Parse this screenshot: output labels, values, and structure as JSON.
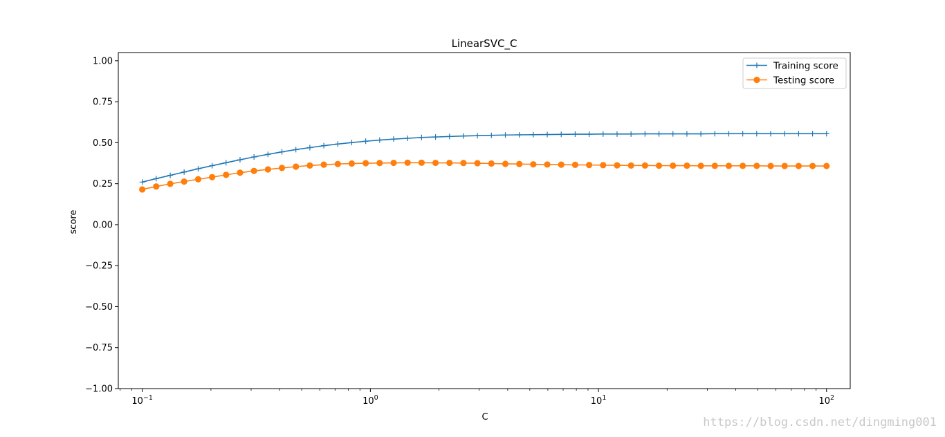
{
  "chart_data": {
    "type": "line",
    "title": "LinearSVC_C",
    "xlabel": "C",
    "ylabel": "score",
    "xscale": "log",
    "xlim": [
      0.0785,
      127
    ],
    "ylim": [
      -1.0,
      1.05
    ],
    "xticks": [
      {
        "value": 0.1,
        "base": "10",
        "exp": "−1"
      },
      {
        "value": 1,
        "base": "10",
        "exp": "0"
      },
      {
        "value": 10,
        "base": "10",
        "exp": "1"
      },
      {
        "value": 100,
        "base": "10",
        "exp": "2"
      }
    ],
    "yticks": [
      1.0,
      0.75,
      0.5,
      0.25,
      0.0,
      -0.25,
      -0.5,
      -0.75,
      -1.0
    ],
    "ytick_labels": [
      "1.00",
      "0.75",
      "0.50",
      "0.25",
      "0.00",
      "−0.25",
      "−0.50",
      "−0.75",
      "−1.00"
    ],
    "grid": false,
    "legend_position": "top-right",
    "x": [
      0.1,
      0.1151,
      0.1326,
      0.1526,
      0.1758,
      0.2024,
      0.233,
      0.2683,
      0.3089,
      0.3556,
      0.4095,
      0.4715,
      0.5429,
      0.6251,
      0.7197,
      0.8286,
      0.9541,
      1.0985,
      1.2649,
      1.4563,
      1.6768,
      1.9307,
      2.223,
      2.5595,
      2.9471,
      3.3932,
      3.9069,
      4.4984,
      5.1795,
      5.9636,
      6.8665,
      7.906,
      9.103,
      10.481,
      12.068,
      13.895,
      15.999,
      18.421,
      21.21,
      24.421,
      28.118,
      32.375,
      37.276,
      42.919,
      49.417,
      56.899,
      65.513,
      75.431,
      86.851,
      100.0
    ],
    "series": [
      {
        "name": "Training score",
        "color": "#1f77b4",
        "marker": "plus",
        "values": [
          0.26,
          0.281,
          0.301,
          0.321,
          0.341,
          0.36,
          0.378,
          0.396,
          0.413,
          0.429,
          0.444,
          0.458,
          0.47,
          0.482,
          0.492,
          0.501,
          0.509,
          0.516,
          0.522,
          0.527,
          0.532,
          0.535,
          0.538,
          0.541,
          0.543,
          0.545,
          0.547,
          0.548,
          0.549,
          0.55,
          0.551,
          0.552,
          0.552,
          0.553,
          0.553,
          0.553,
          0.554,
          0.554,
          0.554,
          0.554,
          0.554,
          0.555,
          0.555,
          0.555,
          0.555,
          0.555,
          0.555,
          0.555,
          0.555,
          0.555
        ]
      },
      {
        "name": "Testing score",
        "color": "#ff7f0e",
        "marker": "circle",
        "values": [
          0.215,
          0.233,
          0.249,
          0.263,
          0.277,
          0.29,
          0.304,
          0.317,
          0.328,
          0.337,
          0.346,
          0.354,
          0.361,
          0.366,
          0.37,
          0.373,
          0.375,
          0.376,
          0.377,
          0.378,
          0.378,
          0.377,
          0.377,
          0.376,
          0.375,
          0.373,
          0.371,
          0.37,
          0.368,
          0.367,
          0.366,
          0.365,
          0.364,
          0.363,
          0.362,
          0.361,
          0.361,
          0.36,
          0.36,
          0.36,
          0.359,
          0.359,
          0.359,
          0.359,
          0.359,
          0.358,
          0.358,
          0.358,
          0.358,
          0.358
        ]
      }
    ]
  },
  "watermark": "https://blog.csdn.net/dingming001"
}
